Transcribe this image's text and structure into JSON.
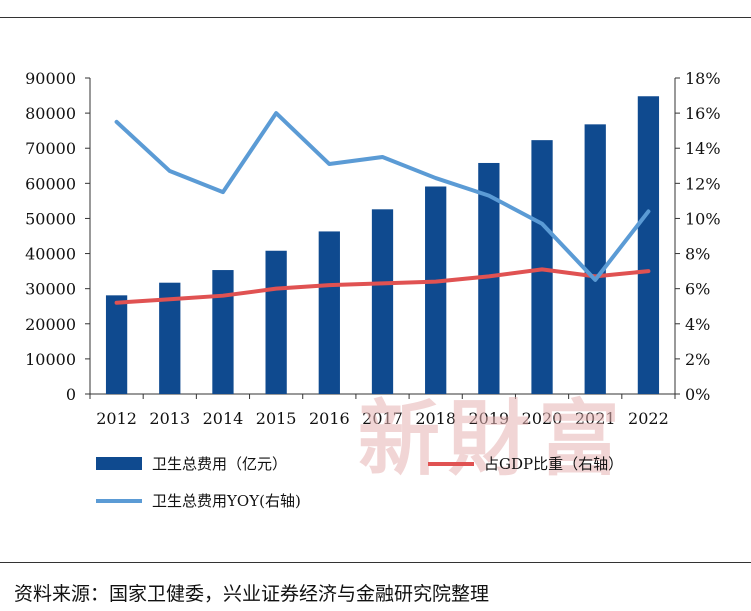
{
  "source": "资料来源：国家卫健委，兴业证券经济与金融研究院整理",
  "watermark": "新財富",
  "colors": {
    "bar": "#0f4a8f",
    "yoy": "#5b9bd5",
    "gdp": "#e05252",
    "axis": "#333333"
  },
  "chart_data": {
    "type": "bar",
    "categories": [
      "2012",
      "2013",
      "2014",
      "2015",
      "2016",
      "2017",
      "2018",
      "2019",
      "2020",
      "2021",
      "2022"
    ],
    "y_left": {
      "ticks": [
        "0",
        "10000",
        "20000",
        "30000",
        "40000",
        "50000",
        "60000",
        "70000",
        "80000",
        "90000"
      ],
      "range": [
        0,
        90000
      ]
    },
    "y_right": {
      "ticks": [
        "0%",
        "2%",
        "4%",
        "6%",
        "8%",
        "10%",
        "12%",
        "14%",
        "16%",
        "18%"
      ],
      "range": [
        0,
        18
      ]
    },
    "series": [
      {
        "name": "卫生总费用（亿元）",
        "type": "bar",
        "axis": "left",
        "values": [
          28100,
          31700,
          35300,
          40800,
          46300,
          52600,
          59100,
          65800,
          72300,
          76800,
          84800
        ]
      },
      {
        "name": "占GDP比重（右轴）",
        "type": "line",
        "axis": "right",
        "values": [
          5.2,
          5.4,
          5.6,
          6.0,
          6.2,
          6.3,
          6.4,
          6.7,
          7.1,
          6.7,
          7.0
        ]
      },
      {
        "name": "卫生总费用YOY(右轴)",
        "type": "line",
        "axis": "right",
        "values": [
          15.5,
          12.7,
          11.5,
          16.0,
          13.1,
          13.5,
          12.3,
          11.3,
          9.7,
          6.5,
          10.4
        ]
      }
    ]
  }
}
